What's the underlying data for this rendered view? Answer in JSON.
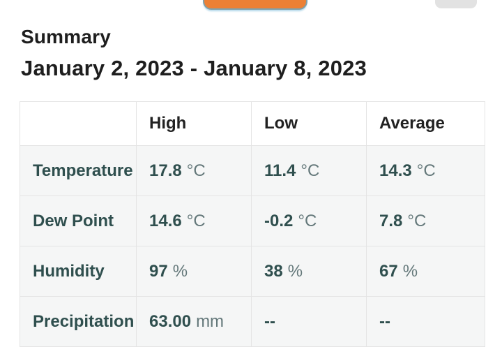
{
  "page": {
    "heading": "Summary",
    "date_range": "January 2, 2023 - January 8, 2023"
  },
  "colors": {
    "accent_orange": "#EC8035",
    "button_border_blue_gray": "#7FA0AA",
    "pill_gray": "#E2E2E2",
    "heading_text": "#1E1E1E",
    "table_header_text": "#212121",
    "table_value_teal": "#2F4F4E",
    "unit_gray_teal": "#64787A",
    "row_background": "#F5F6F6",
    "table_border": "#E4E4E4"
  },
  "table": {
    "columns": [
      "",
      "High",
      "Low",
      "Average"
    ],
    "rows": [
      {
        "label": "Temperature",
        "high": {
          "value": "17.8",
          "unit": "°C"
        },
        "low": {
          "value": "11.4",
          "unit": "°C"
        },
        "average": {
          "value": "14.3",
          "unit": "°C"
        }
      },
      {
        "label": "Dew Point",
        "high": {
          "value": "14.6",
          "unit": "°C"
        },
        "low": {
          "value": "-0.2",
          "unit": "°C"
        },
        "average": {
          "value": "7.8",
          "unit": "°C"
        }
      },
      {
        "label": "Humidity",
        "high": {
          "value": "97",
          "unit": "%"
        },
        "low": {
          "value": "38",
          "unit": "%"
        },
        "average": {
          "value": "67",
          "unit": "%"
        }
      },
      {
        "label": "Precipitation",
        "high": {
          "value": "63.00",
          "unit": "mm"
        },
        "low": {
          "value": "--",
          "unit": ""
        },
        "average": {
          "value": "--",
          "unit": ""
        }
      }
    ]
  }
}
